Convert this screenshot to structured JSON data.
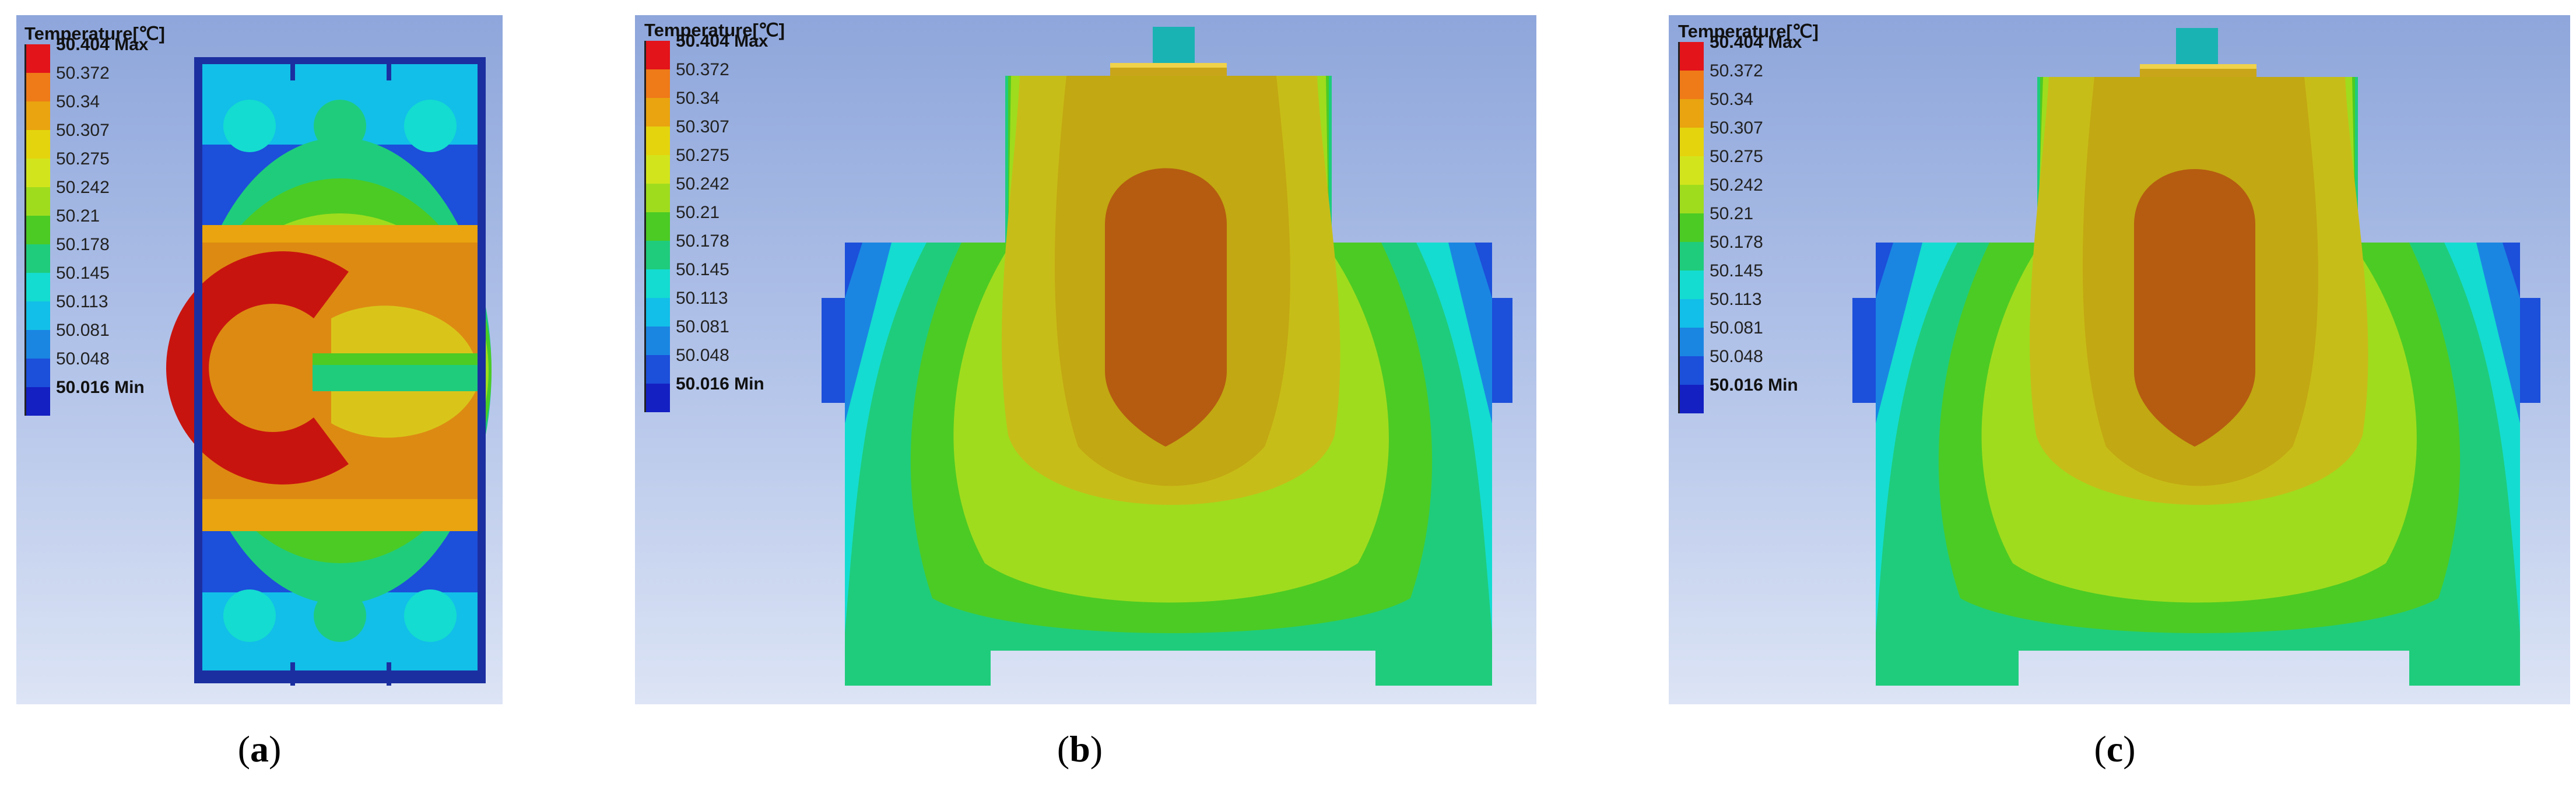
{
  "legend": {
    "title": "Temperature[℃]",
    "entries": [
      {
        "label": "50.404 Max",
        "color": "#e3141a"
      },
      {
        "label": "50.372",
        "color": "#ef7a18"
      },
      {
        "label": "50.34",
        "color": "#e9a40f"
      },
      {
        "label": "50.307",
        "color": "#e4d40e"
      },
      {
        "label": "50.275",
        "color": "#d2e51c"
      },
      {
        "label": "50.242",
        "color": "#9fdc1e"
      },
      {
        "label": "50.21",
        "color": "#4ccb24"
      },
      {
        "label": "50.178",
        "color": "#1fcc7c"
      },
      {
        "label": "50.145",
        "color": "#14dcd0"
      },
      {
        "label": "50.113",
        "color": "#12bfe8"
      },
      {
        "label": "50.081",
        "color": "#1a86e2"
      },
      {
        "label": "50.048",
        "color": "#1c4fda"
      },
      {
        "label": "50.016 Min",
        "color": "#1420c2"
      }
    ]
  },
  "captions": {
    "a": {
      "open": "(",
      "letter": "a",
      "close": ")"
    },
    "b": {
      "open": "(",
      "letter": "b",
      "close": ")"
    },
    "c": {
      "open": "(",
      "letter": "c",
      "close": ")"
    }
  }
}
